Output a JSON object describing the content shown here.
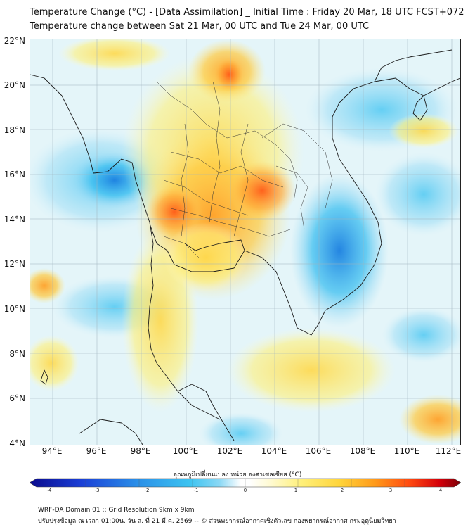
{
  "header": {
    "title_line1": "Temperature Change (°C) - [Data Assimilation] _ Initial Time : Friday 20 Mar, 18 UTC FCST+072",
    "title_line2": "Temperature change between Sat 21 Mar, 00 UTC and Tue 24 Mar, 00 UTC"
  },
  "map": {
    "lat_labels": [
      "22°N",
      "20°N",
      "18°N",
      "16°N",
      "14°N",
      "12°N",
      "10°N",
      "8°N",
      "6°N",
      "4°N"
    ],
    "lon_labels": [
      "94°E",
      "96°E",
      "98°E",
      "100°E",
      "102°E",
      "104°E",
      "106°E",
      "108°E",
      "110°E",
      "112°E"
    ],
    "lat_range": [
      4,
      22.3
    ],
    "lon_range": [
      93,
      112.4
    ]
  },
  "colorbar": {
    "title": "อุณหภูมิเปลี่ยนแปลง หน่วย องศาเซลเซียส (°C)",
    "ticks": [
      "-4",
      "-3",
      "-2",
      "-1",
      "0",
      "1",
      "2",
      "3",
      "4"
    ],
    "range": [
      -4,
      4
    ],
    "colors": [
      "#0a0a8c",
      "#1a3fd6",
      "#2a8fe8",
      "#3cc3f0",
      "#8ad8f5",
      "#d6f1fb",
      "#ffffff",
      "#fffad0",
      "#fff07a",
      "#ffd43a",
      "#ff9a1a",
      "#ff4a10",
      "#d4000a",
      "#7a0008"
    ]
  },
  "footer": {
    "line1": "WRF-DA Domain 01 :: Grid Resolution 9km x 9km",
    "line2": "ปรับปรุงข้อมูล ณ เวลา 01:00น. วัน ส. ที่ 21 มี.ค. 2569 -- © ส่วนพยากรณ์อากาศเชิงตัวเลข กองพยากรณ์อากาศ กรมอุตุนิยมวิทยา"
  }
}
